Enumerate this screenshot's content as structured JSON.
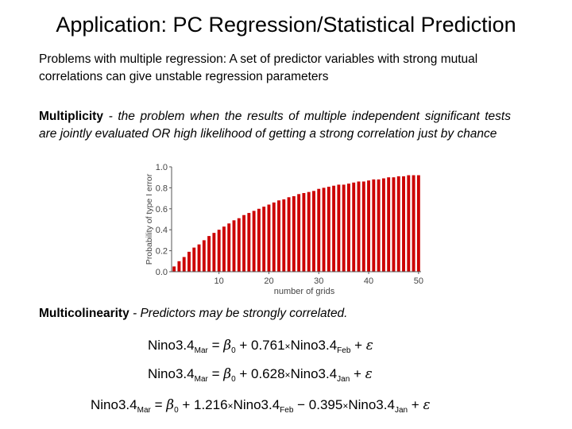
{
  "slide": {
    "title": "Application: PC Regression/Statistical Prediction",
    "problems_text": "Problems with multiple regression: A set of predictor variables with strong mutual correlations can give unstable regression parameters",
    "multiplicity": {
      "term": "Multiplicity",
      "definition": " - the problem when the results of multiple independent significant tests are jointly evaluated OR high likelihood of getting a strong correlation just by chance"
    },
    "multicolinearity": {
      "term": "Multicolinearity",
      "definition": " - Predictors may be strongly correlated."
    }
  },
  "equations": {
    "eq1": {
      "lhs": "Nino3.4",
      "lhs_sub": "Mar",
      "beta": "β",
      "beta_sub": "0",
      "plus1": " + 0.761",
      "times": "×",
      "rhs1": "Nino3.4",
      "rhs1_sub": "Feb",
      "plus_eps": " + ",
      "eps": "ε"
    },
    "eq2": {
      "lhs": "Nino3.4",
      "lhs_sub": "Mar",
      "beta": "β",
      "beta_sub": "0",
      "plus1": " + 0.628",
      "times": "×",
      "rhs1": "Nino3.4",
      "rhs1_sub": "Jan",
      "plus_eps": " + ",
      "eps": "ε"
    },
    "eq3": {
      "lhs": "Nino3.4",
      "lhs_sub": "Mar",
      "beta": "β",
      "beta_sub": "0",
      "plus1": " + 1.216",
      "times": "×",
      "rhs1": "Nino3.4",
      "rhs1_sub": "Feb",
      "minus2": " − 0.395",
      "times2": "×",
      "rhs2": "Nino3.4",
      "rhs2_sub": "Jan",
      "plus_eps": " + ",
      "eps": "ε"
    }
  },
  "colors": {
    "bar": "#cc0000",
    "axis": "#555555",
    "tick_text": "#444444"
  },
  "chart_data": {
    "type": "bar",
    "title": "",
    "xlabel": "number of grids",
    "ylabel": "Probability of type I error",
    "x": [
      1,
      2,
      3,
      4,
      5,
      6,
      7,
      8,
      9,
      10,
      11,
      12,
      13,
      14,
      15,
      16,
      17,
      18,
      19,
      20,
      21,
      22,
      23,
      24,
      25,
      26,
      27,
      28,
      29,
      30,
      31,
      32,
      33,
      34,
      35,
      36,
      37,
      38,
      39,
      40,
      41,
      42,
      43,
      44,
      45,
      46,
      47,
      48,
      49,
      50
    ],
    "values": [
      0.05,
      0.1,
      0.14,
      0.19,
      0.23,
      0.26,
      0.3,
      0.34,
      0.37,
      0.4,
      0.43,
      0.46,
      0.49,
      0.51,
      0.54,
      0.56,
      0.58,
      0.6,
      0.62,
      0.64,
      0.66,
      0.68,
      0.69,
      0.71,
      0.72,
      0.74,
      0.75,
      0.76,
      0.77,
      0.79,
      0.8,
      0.81,
      0.82,
      0.83,
      0.83,
      0.84,
      0.85,
      0.86,
      0.86,
      0.87,
      0.88,
      0.88,
      0.89,
      0.9,
      0.9,
      0.91,
      0.91,
      0.92,
      0.92,
      0.92
    ],
    "xticks": [
      10,
      20,
      30,
      40,
      50
    ],
    "yticks": [
      "0.0",
      "0.2",
      "0.4",
      "0.6",
      "0.8",
      "1.0"
    ],
    "xlim": [
      0.5,
      50.5
    ],
    "ylim": [
      0,
      1.0
    ],
    "grid": false,
    "legend": "none"
  }
}
